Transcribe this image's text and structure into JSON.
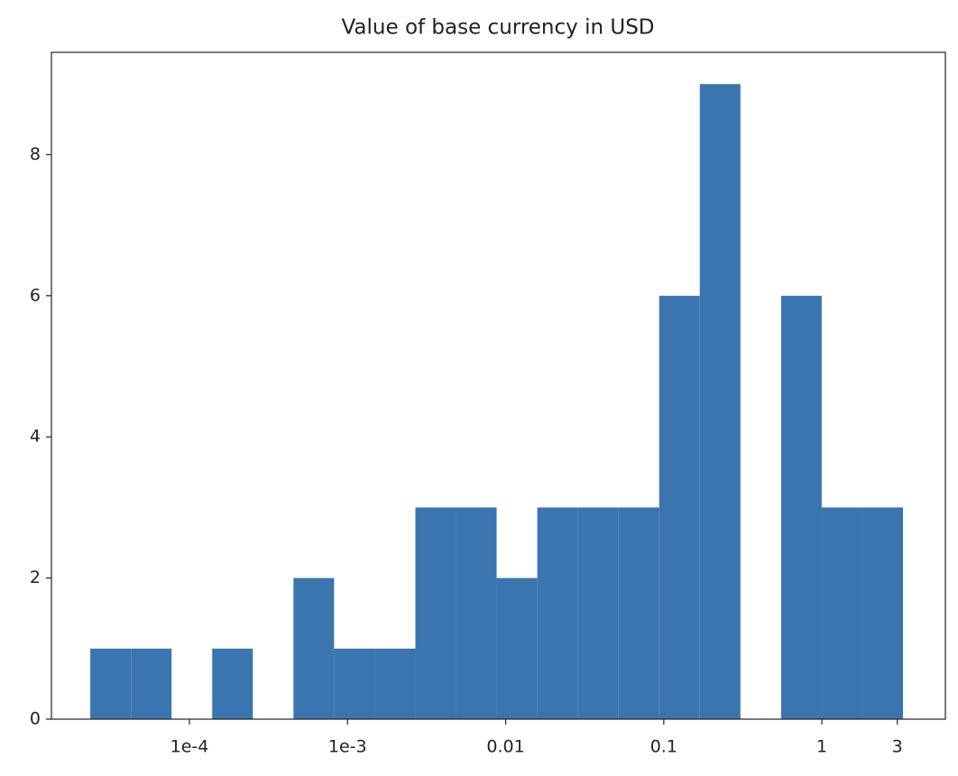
{
  "chart_data": {
    "type": "histogram",
    "title": "Value of base currency in USD",
    "bins": [
      2.36e-05,
      4.27e-05,
      7.71e-05,
      0.0001393,
      0.0002518,
      0.000455,
      0.000822,
      0.001486,
      0.002685,
      0.00485,
      0.00877,
      0.01585,
      0.02864,
      0.05176,
      0.09354,
      0.169,
      0.3055,
      0.5521,
      0.9977,
      1.803,
      3.258
    ],
    "values": [
      1,
      1,
      0,
      1,
      0,
      2,
      1,
      1,
      3,
      3,
      2,
      3,
      3,
      3,
      6,
      9,
      0,
      6,
      3,
      3
    ],
    "color": "#3b75af",
    "xscale": "log",
    "xlim": [
      1.34e-05,
      6.04
    ],
    "xticks": [
      {
        "value": 0.0001,
        "label": "1e-4"
      },
      {
        "value": 0.001,
        "label": "1e-3"
      },
      0.01,
      0.1,
      1,
      3
    ],
    "ylim": [
      0,
      9.45
    ],
    "yticks": [
      0,
      2,
      4,
      6,
      8
    ],
    "grid": false
  }
}
